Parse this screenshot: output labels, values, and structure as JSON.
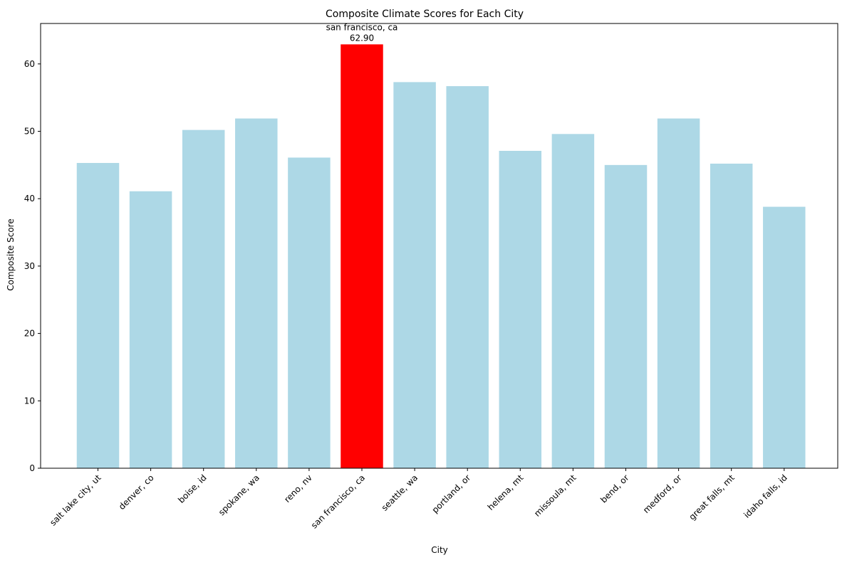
{
  "chart_data": {
    "type": "bar",
    "title": "Composite Climate Scores for Each City",
    "xlabel": "City",
    "ylabel": "Composite Score",
    "categories": [
      "salt lake city, ut",
      "denver, co",
      "boise, id",
      "spokane, wa",
      "reno, nv",
      "san francisco, ca",
      "seattle, wa",
      "portland, or",
      "helena, mt",
      "missoula, mt",
      "bend, or",
      "medford, or",
      "great falls, mt",
      "idaho falls, id"
    ],
    "values": [
      45.3,
      41.1,
      50.2,
      51.9,
      46.1,
      62.9,
      57.3,
      56.7,
      47.1,
      49.6,
      45.0,
      51.9,
      45.2,
      38.8
    ],
    "ylim": [
      0,
      66
    ],
    "yticks": [
      0,
      10,
      20,
      30,
      40,
      50,
      60
    ],
    "grid": false,
    "highlight": {
      "category": "san francisco, ca",
      "label_name": "san francisco, ca",
      "label_value": "62.90"
    },
    "colors": {
      "bar": "#add8e6",
      "highlight": "#ff0000",
      "axis": "#000000"
    }
  }
}
